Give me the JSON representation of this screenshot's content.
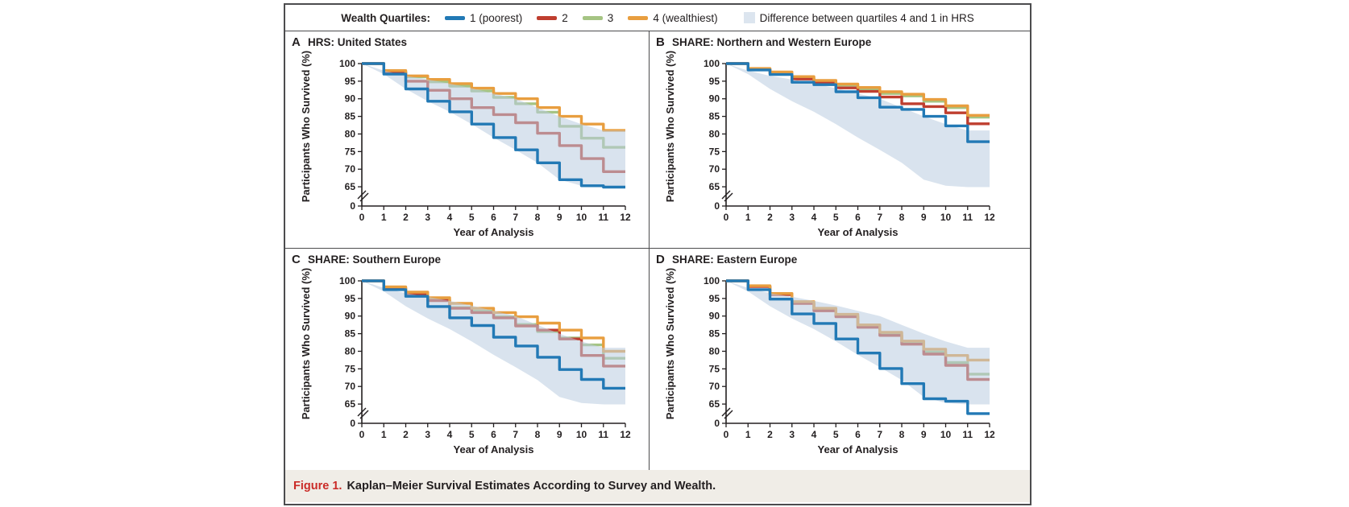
{
  "figure": {
    "caption_label": "Figure 1.",
    "caption_text": "Kaplan–Meier Survival Estimates According to Survey and Wealth."
  },
  "legend": {
    "title": "Wealth Quartiles:",
    "items": [
      {
        "key": "q1",
        "label": "1 (poorest)",
        "color": "#2279b5"
      },
      {
        "key": "q2",
        "label": "2",
        "color": "#bf3e2f"
      },
      {
        "key": "q3",
        "label": "3",
        "color": "#a5c483"
      },
      {
        "key": "q4",
        "label": "4 (wealthiest)",
        "color": "#e89e3f"
      }
    ],
    "band_item": {
      "label": "Difference between quartiles 4 and 1 in HRS",
      "color": "#dce5ef"
    }
  },
  "axes": {
    "x_label": "Year of Analysis",
    "y_label": "Participants Who Survived (%)",
    "y_ticks": [
      100,
      95,
      90,
      85,
      80,
      75,
      70,
      65,
      0
    ],
    "x_ticks": [
      0,
      1,
      2,
      3,
      4,
      5,
      6,
      7,
      8,
      9,
      10,
      11,
      12
    ],
    "y_break_between": [
      65,
      0
    ],
    "ylim_shown": [
      65,
      100
    ]
  },
  "chart_data": {
    "type": "line",
    "subtype": "kaplan-meier-step",
    "x_label": "Year of Analysis",
    "y_label": "Participants Who Survived (%)",
    "x_years": [
      0,
      1,
      2,
      3,
      4,
      5,
      6,
      7,
      8,
      9,
      10,
      11,
      12
    ],
    "band_color": "#b9cce0",
    "band_legend": "Difference between quartiles 4 and 1 in HRS",
    "panels": [
      {
        "letter": "A",
        "title": "HRS: United States",
        "series": [
          {
            "name": "Quartile 1 (poorest)",
            "color": "#2279b5",
            "values": [
              100,
              97,
              92.8,
              89.3,
              86.3,
              82.8,
              79,
              75.5,
              71.8,
              67,
              65.3,
              64.9,
              64.9
            ]
          },
          {
            "name": "Quartile 2",
            "color": "#bf3e2f",
            "values": [
              100,
              97.5,
              95,
              92.4,
              90,
              87.5,
              85.5,
              83.2,
              80.2,
              76.7,
              73,
              69.3,
              69.3
            ]
          },
          {
            "name": "Quartile 3",
            "color": "#a5c483",
            "values": [
              100,
              97.8,
              96.2,
              94.8,
              93.6,
              92.2,
              90.4,
              88.6,
              86.2,
              82.2,
              78.8,
              76.2,
              76.2
            ]
          },
          {
            "name": "Quartile 4 (wealthiest)",
            "color": "#e89e3f",
            "values": [
              100,
              98,
              96.5,
              95.5,
              94.3,
              93,
              91.5,
              90,
              87.5,
              85,
              82.8,
              81,
              81
            ]
          }
        ]
      },
      {
        "letter": "B",
        "title": "SHARE: Northern and Western Europe",
        "series": [
          {
            "name": "Quartile 1 (poorest)",
            "color": "#2279b5",
            "values": [
              100,
              98.2,
              96.9,
              94.7,
              94,
              92,
              90.3,
              87.6,
              87,
              85,
              82.3,
              77.8,
              77.8
            ]
          },
          {
            "name": "Quartile 2",
            "color": "#bf3e2f",
            "values": [
              100,
              98.4,
              97.2,
              95.6,
              94.5,
              93.1,
              92.1,
              90.5,
              88.6,
              87.8,
              86,
              82.9,
              82.9
            ]
          },
          {
            "name": "Quartile 3",
            "color": "#a5c483",
            "values": [
              100,
              98.5,
              97.4,
              96,
              94.8,
              93.9,
              92.8,
              91.5,
              90.8,
              89.3,
              87.5,
              84.8,
              84.8
            ]
          },
          {
            "name": "Quartile 4 (wealthiest)",
            "color": "#e89e3f",
            "values": [
              100,
              98.6,
              97.6,
              96.3,
              95.2,
              94.2,
              93.2,
              92,
              91.3,
              89.8,
              88,
              85.3,
              85.3
            ]
          }
        ]
      },
      {
        "letter": "C",
        "title": "SHARE: Southern Europe",
        "series": [
          {
            "name": "Quartile 1 (poorest)",
            "color": "#2279b5",
            "values": [
              100,
              97.5,
              95.6,
              92.7,
              89.5,
              87.3,
              84,
              81.5,
              78.3,
              74.8,
              72,
              69.5,
              69.5
            ]
          },
          {
            "name": "Quartile 2",
            "color": "#bf3e2f",
            "values": [
              100,
              97.8,
              96.2,
              94.4,
              92.2,
              91,
              89.5,
              87.2,
              86,
              83.5,
              78.8,
              75.8,
              75.8
            ]
          },
          {
            "name": "Quartile 3",
            "color": "#a5c483",
            "values": [
              100,
              98,
              96.4,
              94.6,
              92.4,
              91.4,
              89.8,
              87.6,
              85.6,
              83.8,
              81.8,
              78,
              78
            ]
          },
          {
            "name": "Quartile 4 (wealthiest)",
            "color": "#e89e3f",
            "values": [
              100,
              98.3,
              96.8,
              95.2,
              93.6,
              92.2,
              91,
              89.8,
              88,
              86,
              83.8,
              80,
              80
            ]
          }
        ]
      },
      {
        "letter": "D",
        "title": "SHARE: Eastern Europe",
        "series": [
          {
            "name": "Quartile 1 (poorest)",
            "color": "#2279b5",
            "values": [
              100,
              97.5,
              94.8,
              90.6,
              87.9,
              83.5,
              79.5,
              75.1,
              70.8,
              66.5,
              65.8,
              62.3,
              62.3
            ]
          },
          {
            "name": "Quartile 2",
            "color": "#bf3e2f",
            "values": [
              100,
              98.4,
              96.1,
              93.6,
              91.5,
              89.8,
              86.8,
              84.5,
              82,
              79.2,
              76,
              72,
              72
            ]
          },
          {
            "name": "Quartile 3",
            "color": "#a5c483",
            "values": [
              100,
              98.5,
              96.2,
              93.8,
              91.8,
              90.2,
              87.2,
              85,
              82.5,
              79.8,
              76.8,
              73.5,
              73.5
            ]
          },
          {
            "name": "Quartile 4 (wealthiest)",
            "color": "#e89e3f",
            "values": [
              100,
              98.6,
              96.4,
              94.1,
              92.2,
              90.5,
              87.5,
              85.4,
              82.9,
              80.6,
              78.8,
              77.5,
              77.5
            ]
          }
        ]
      }
    ],
    "hrs_difference_band": {
      "top_q4_hrs": [
        100,
        98,
        96.5,
        95.5,
        94.3,
        93,
        91.5,
        90,
        87.5,
        85,
        82.8,
        81,
        81
      ],
      "bottom_q1_hrs": [
        100,
        97,
        92.8,
        89.3,
        86.3,
        82.8,
        79,
        75.5,
        71.8,
        67,
        65.3,
        64.9,
        64.9
      ]
    }
  }
}
